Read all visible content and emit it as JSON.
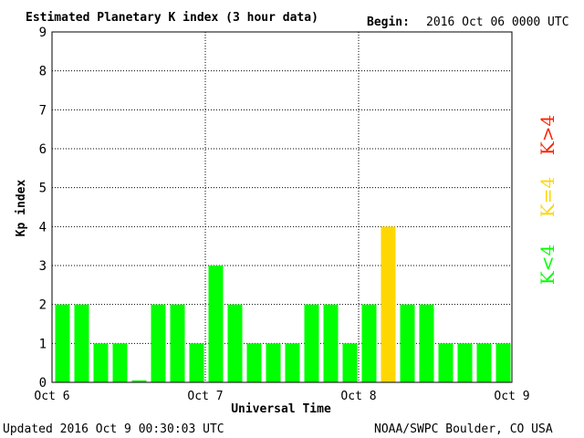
{
  "header": {
    "title": "Estimated Planetary K index (3 hour data)",
    "begin_label": "Begin:",
    "begin_value": "2016 Oct 06 0000 UTC"
  },
  "footer": {
    "updated": "Updated 2016 Oct  9 00:30:03 UTC",
    "source": "NOAA/SWPC Boulder, CO USA"
  },
  "legend": {
    "high": "K>4",
    "equal": "K=4",
    "low": "K<4"
  },
  "colors": {
    "low": "#00ff00",
    "equal": "#ffd700",
    "high": "#ff2200"
  },
  "chart_data": {
    "type": "bar",
    "xlabel": "Universal Time",
    "ylabel": "Kp index",
    "ylim": [
      0,
      9
    ],
    "y_ticks": [
      0,
      1,
      2,
      3,
      4,
      5,
      6,
      7,
      8,
      9
    ],
    "x_tick_labels": [
      "Oct 6",
      "Oct 7",
      "Oct 8",
      "Oct 9"
    ],
    "interval_hours": 3,
    "values": [
      2,
      2,
      1,
      1,
      0.05,
      2,
      2,
      1,
      3,
      2,
      1,
      1,
      1,
      2,
      2,
      1,
      2,
      4,
      2,
      2,
      1,
      1,
      1,
      1
    ],
    "grid": "dotted",
    "legend_placement": "right"
  }
}
